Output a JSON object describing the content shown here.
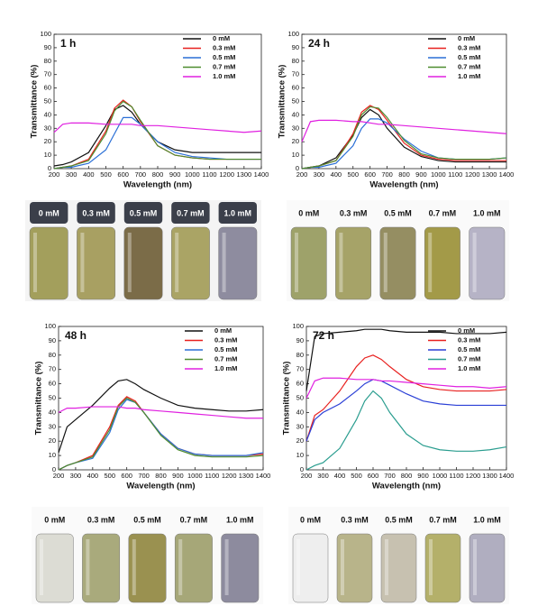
{
  "chart_data": [
    {
      "type": "line",
      "title": "1 h",
      "x_label": "Wavelength (nm)",
      "y_label": "Transmittance (%)",
      "x": [
        200,
        250,
        300,
        400,
        500,
        550,
        600,
        650,
        700,
        800,
        900,
        1000,
        1100,
        1200,
        1300,
        1400
      ],
      "series": [
        {
          "name": "0 mM",
          "color": "#111111",
          "values": [
            2,
            3,
            5,
            12,
            32,
            44,
            47,
            42,
            33,
            20,
            14,
            12,
            12,
            12,
            12,
            12
          ]
        },
        {
          "name": "0.3 mM",
          "color": "#e8211f",
          "values": [
            0,
            1,
            2,
            7,
            28,
            45,
            51,
            46,
            35,
            17,
            10,
            8,
            7,
            7,
            7,
            7
          ]
        },
        {
          "name": "0.5 mM",
          "color": "#2a6fd6",
          "values": [
            0,
            1,
            1,
            4,
            14,
            26,
            38,
            38,
            33,
            20,
            12,
            9,
            8,
            7,
            7,
            7
          ]
        },
        {
          "name": "0.7 mM",
          "color": "#4d8c2f",
          "values": [
            0,
            1,
            2,
            6,
            26,
            43,
            50,
            46,
            36,
            17,
            10,
            8,
            7,
            7,
            7,
            7
          ]
        },
        {
          "name": "1.0 mM",
          "color": "#e020e0",
          "values": [
            27,
            33,
            34,
            34,
            33,
            33,
            33,
            33,
            32,
            32,
            31,
            30,
            29,
            28,
            27,
            28
          ]
        }
      ],
      "xlim": [
        200,
        1400
      ],
      "xticks": [
        200,
        300,
        400,
        500,
        600,
        700,
        800,
        900,
        1000,
        1100,
        1200,
        1300,
        1400
      ],
      "ylim": [
        0,
        100
      ],
      "yticks": [
        0,
        10,
        20,
        30,
        40,
        50,
        60,
        70,
        80,
        90,
        100
      ],
      "legend": "upper right"
    },
    {
      "type": "line",
      "title": "24 h",
      "x_label": "Wavelength (nm)",
      "y_label": "Transmittance (%)",
      "x": [
        200,
        250,
        300,
        400,
        500,
        550,
        600,
        650,
        700,
        800,
        900,
        1000,
        1100,
        1200,
        1300,
        1400
      ],
      "series": [
        {
          "name": "0 mM",
          "color": "#111111",
          "values": [
            0,
            1,
            2,
            8,
            25,
            38,
            44,
            40,
            30,
            16,
            9,
            6,
            5,
            5,
            5,
            5
          ]
        },
        {
          "name": "0.3 mM",
          "color": "#e8211f",
          "values": [
            0,
            1,
            2,
            6,
            26,
            42,
            47,
            44,
            36,
            19,
            10,
            7,
            6,
            6,
            6,
            6
          ]
        },
        {
          "name": "0.5 mM",
          "color": "#2a6fd6",
          "values": [
            0,
            1,
            1,
            4,
            17,
            30,
            37,
            37,
            34,
            22,
            13,
            8,
            7,
            7,
            7,
            8
          ]
        },
        {
          "name": "0.7 mM",
          "color": "#4d8c2f",
          "values": [
            0,
            1,
            2,
            6,
            24,
            40,
            46,
            45,
            38,
            21,
            11,
            8,
            7,
            7,
            7,
            8
          ]
        },
        {
          "name": "1.0 mM",
          "color": "#e020e0",
          "values": [
            20,
            35,
            36,
            36,
            35,
            35,
            34,
            33,
            33,
            32,
            31,
            30,
            29,
            28,
            27,
            26
          ]
        }
      ],
      "xlim": [
        200,
        1400
      ],
      "xticks": [
        200,
        300,
        400,
        500,
        600,
        700,
        800,
        900,
        1000,
        1100,
        1200,
        1300,
        1400
      ],
      "ylim": [
        0,
        100
      ],
      "yticks": [
        0,
        10,
        20,
        30,
        40,
        50,
        60,
        70,
        80,
        90,
        100
      ],
      "legend": "upper right"
    },
    {
      "type": "line",
      "title": "48 h",
      "x_label": "Wavelength (nm)",
      "y_label": "Transmittance (%)",
      "x": [
        200,
        250,
        300,
        400,
        500,
        550,
        600,
        650,
        700,
        800,
        900,
        1000,
        1100,
        1200,
        1300,
        1400
      ],
      "series": [
        {
          "name": "0 mM",
          "color": "#111111",
          "values": [
            12,
            30,
            35,
            45,
            57,
            62,
            63,
            60,
            56,
            50,
            45,
            43,
            42,
            41,
            41,
            42
          ]
        },
        {
          "name": "0.3 mM",
          "color": "#e8211f",
          "values": [
            0,
            3,
            5,
            10,
            30,
            45,
            51,
            48,
            40,
            25,
            15,
            11,
            10,
            10,
            10,
            11
          ]
        },
        {
          "name": "0.5 mM",
          "color": "#2a6fd6",
          "values": [
            0,
            3,
            5,
            8,
            26,
            42,
            49,
            47,
            40,
            25,
            15,
            11,
            10,
            10,
            10,
            12
          ]
        },
        {
          "name": "0.7 mM",
          "color": "#4d8c2f",
          "values": [
            0,
            3,
            5,
            9,
            28,
            44,
            50,
            47,
            40,
            24,
            14,
            10,
            9,
            9,
            9,
            10
          ]
        },
        {
          "name": "1.0 mM",
          "color": "#e020e0",
          "values": [
            40,
            43,
            43,
            44,
            44,
            44,
            43,
            43,
            42,
            41,
            40,
            39,
            38,
            37,
            36,
            36
          ]
        }
      ],
      "xlim": [
        200,
        1400
      ],
      "xticks": [
        200,
        300,
        400,
        500,
        600,
        700,
        800,
        900,
        1000,
        1100,
        1200,
        1300,
        1400
      ],
      "ylim": [
        0,
        100
      ],
      "yticks": [
        0,
        10,
        20,
        30,
        40,
        50,
        60,
        70,
        80,
        90,
        100
      ],
      "legend": "upper right"
    },
    {
      "type": "line",
      "title": "72 h",
      "x_label": "Wavelength (nm)",
      "y_label": "Transmittance (%)",
      "x": [
        200,
        250,
        300,
        400,
        500,
        550,
        600,
        650,
        700,
        800,
        900,
        1000,
        1100,
        1200,
        1300,
        1400
      ],
      "series": [
        {
          "name": "0 mM",
          "color": "#111111",
          "values": [
            55,
            93,
            95,
            96,
            97,
            98,
            98,
            98,
            97,
            96,
            96,
            96,
            95,
            95,
            95,
            96
          ]
        },
        {
          "name": "0.3 mM",
          "color": "#e8211f",
          "values": [
            20,
            38,
            42,
            55,
            72,
            78,
            80,
            77,
            72,
            63,
            58,
            56,
            55,
            55,
            55,
            56
          ]
        },
        {
          "name": "0.5 mM",
          "color": "#2a3fd6",
          "values": [
            20,
            35,
            40,
            46,
            55,
            60,
            63,
            62,
            59,
            53,
            48,
            46,
            45,
            45,
            45,
            45
          ]
        },
        {
          "name": "0.7 mM",
          "color": "#2a9d8f",
          "values": [
            0,
            3,
            5,
            15,
            35,
            48,
            55,
            50,
            40,
            25,
            17,
            14,
            13,
            13,
            14,
            16
          ]
        },
        {
          "name": "1.0 mM",
          "color": "#e020e0",
          "values": [
            50,
            62,
            64,
            64,
            63,
            63,
            63,
            62,
            62,
            61,
            60,
            59,
            58,
            58,
            57,
            58
          ]
        }
      ],
      "xlim": [
        200,
        1400
      ],
      "xticks": [
        200,
        300,
        400,
        500,
        600,
        700,
        800,
        900,
        1000,
        1100,
        1200,
        1300,
        1400
      ],
      "ylim": [
        0,
        100
      ],
      "yticks": [
        0,
        10,
        20,
        30,
        40,
        50,
        60,
        70,
        80,
        90,
        100
      ],
      "legend": "upper right"
    }
  ],
  "vial_photos": [
    {
      "labels": [
        "0 mM",
        "0.3 mM",
        "0.5 mM",
        "0.7 mM",
        "1.0 mM"
      ]
    },
    {
      "labels": [
        "0 mM",
        "0.3 mM",
        "0.5 mM",
        "0.7 mM",
        "1.0 mM"
      ]
    },
    {
      "labels": [
        "0 mM",
        "0.3 mM",
        "0.5 mM",
        "0.7 mM",
        "1.0 mM"
      ]
    },
    {
      "labels": [
        "0 mM",
        "0.3 mM",
        "0.5 mM",
        "0.7 mM",
        "1.0 mM"
      ]
    }
  ]
}
